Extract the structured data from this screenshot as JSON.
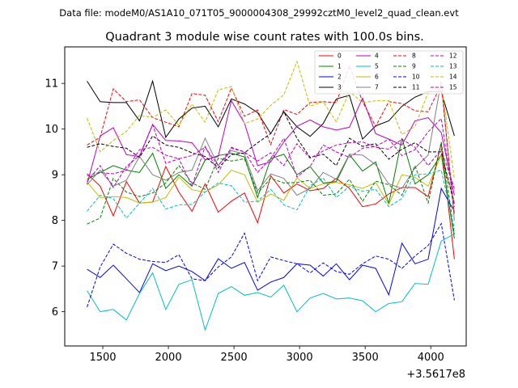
{
  "header_text": "Data file: modeM0/AS1A10_071T05_9000004308_29992cztM0_level2_quad_clean.evt",
  "chart_data": {
    "type": "line",
    "title": "Quadrant 3 module wise count rates with 100.0s bins.",
    "xlabel": "",
    "ylabel": "",
    "x_offset_label": "+3.5617e8",
    "xlim": [
      1210,
      4270
    ],
    "ylim": [
      5.25,
      11.8
    ],
    "x_ticks": [
      1500,
      2000,
      2500,
      3000,
      3500,
      4000
    ],
    "y_ticks": [
      6,
      7,
      8,
      9,
      10,
      11
    ],
    "legend_position": "top-right",
    "x": [
      1380,
      1480,
      1580,
      1680,
      1780,
      1880,
      1980,
      2080,
      2180,
      2280,
      2380,
      2480,
      2580,
      2680,
      2780,
      2880,
      2980,
      3080,
      3180,
      3280,
      3380,
      3480,
      3580,
      3680,
      3780,
      3880,
      3980,
      4080,
      4180
    ],
    "series": [
      {
        "name": "0",
        "color": "#ff0000",
        "dash": "solid",
        "values": [
          9.02,
          8.75,
          8.1,
          8.85,
          8.38,
          8.4,
          9.18,
          8.62,
          8.2,
          8.8,
          8.18,
          8.42,
          8.6,
          7.95,
          8.98,
          8.6,
          8.8,
          8.65,
          8.7,
          8.92,
          8.7,
          8.3,
          8.36,
          8.58,
          8.72,
          8.72,
          8.52,
          9.68,
          7.15
        ]
      },
      {
        "name": "1",
        "color": "#008000",
        "dash": "solid",
        "values": [
          8.9,
          9.05,
          9.2,
          9.1,
          9.05,
          9.47,
          8.7,
          9.0,
          8.75,
          9.32,
          9.42,
          9.47,
          9.39,
          8.5,
          9.35,
          9.45,
          9.0,
          9.18,
          8.82,
          8.85,
          9.44,
          9.08,
          9.28,
          8.37,
          9.8,
          8.8,
          9.0,
          9.44,
          7.6
        ]
      },
      {
        "name": "2",
        "color": "#0000ff",
        "dash": "solid",
        "values": [
          6.93,
          6.75,
          7.02,
          6.72,
          6.42,
          7.05,
          6.9,
          7.0,
          6.88,
          6.68,
          7.16,
          6.95,
          7.08,
          6.47,
          6.65,
          6.75,
          7.05,
          7.02,
          6.78,
          7.05,
          6.7,
          7.02,
          6.95,
          6.37,
          7.5,
          7.05,
          7.15,
          8.7,
          8.2
        ]
      },
      {
        "name": "3",
        "color": "#000000",
        "dash": "solid",
        "values": [
          11.05,
          10.6,
          10.58,
          10.58,
          10.18,
          11.05,
          9.82,
          10.22,
          10.46,
          10.5,
          10.05,
          10.66,
          10.55,
          10.36,
          9.9,
          10.38,
          10.05,
          9.84,
          10.12,
          10.66,
          10.74,
          9.78,
          10.07,
          10.18,
          10.5,
          10.7,
          10.82,
          10.82,
          9.85
        ]
      },
      {
        "name": "4",
        "color": "#c000c0",
        "dash": "solid",
        "values": [
          8.8,
          9.85,
          10.03,
          9.44,
          9.4,
          10.1,
          9.75,
          9.74,
          9.7,
          9.33,
          9.4,
          10.62,
          10.13,
          9.2,
          9.28,
          9.72,
          10.06,
          10.2,
          10.05,
          9.98,
          10.04,
          10.68,
          9.9,
          9.78,
          9.65,
          10.18,
          10.25,
          9.92,
          8.55
        ]
      },
      {
        "name": "5",
        "color": "#00c0c0",
        "dash": "solid",
        "values": [
          6.46,
          6.0,
          6.05,
          5.82,
          6.4,
          6.85,
          6.05,
          6.6,
          6.7,
          5.6,
          6.4,
          6.55,
          6.36,
          6.42,
          6.32,
          6.58,
          6.0,
          6.3,
          6.4,
          6.28,
          6.3,
          6.24,
          6.0,
          6.18,
          6.22,
          6.62,
          6.6,
          7.55,
          7.7
        ]
      },
      {
        "name": "6",
        "color": "#bfbf00",
        "dash": "solid",
        "values": [
          8.84,
          8.5,
          8.52,
          8.5,
          8.38,
          8.4,
          8.5,
          8.95,
          8.67,
          8.62,
          8.78,
          9.1,
          9.0,
          8.4,
          8.58,
          8.44,
          8.93,
          8.7,
          8.8,
          8.83,
          8.78,
          8.7,
          8.83,
          8.35,
          9.0,
          8.94,
          8.75,
          9.44,
          8.4
        ]
      },
      {
        "name": "7",
        "color": "#808080",
        "dash": "solid",
        "values": [
          8.78,
          9.1,
          8.75,
          8.88,
          9.4,
          9.0,
          8.88,
          9.05,
          9.1,
          9.8,
          9.2,
          9.53,
          9.45,
          8.65,
          9.02,
          8.92,
          8.55,
          8.7,
          9.05,
          8.9,
          9.45,
          9.43,
          9.22,
          8.8,
          8.7,
          9.15,
          9.43,
          11.05,
          8.0
        ]
      },
      {
        "name": "8",
        "color": "#ff0000",
        "dash": "dashed",
        "values": [
          9.65,
          9.82,
          10.88,
          10.6,
          10.64,
          10.25,
          10.15,
          10.05,
          10.78,
          10.74,
          10.16,
          10.9,
          10.28,
          10.42,
          9.66,
          10.43,
          10.32,
          10.58,
          10.6,
          10.58,
          11.38,
          10.6,
          10.06,
          10.6,
          10.56,
          10.4,
          10.38,
          10.98,
          8.12
        ]
      },
      {
        "name": "9",
        "color": "#008000",
        "dash": "dashed",
        "values": [
          7.92,
          8.05,
          8.92,
          8.62,
          8.52,
          8.6,
          8.82,
          9.2,
          8.82,
          8.68,
          9.36,
          9.3,
          9.35,
          8.6,
          8.92,
          8.82,
          8.83,
          8.88,
          8.55,
          8.58,
          8.9,
          8.42,
          8.86,
          8.78,
          8.55,
          9.2,
          8.38,
          9.72,
          7.7
        ]
      },
      {
        "name": "10",
        "color": "#0000ff",
        "dash": "dashed",
        "values": [
          6.1,
          6.98,
          7.48,
          7.28,
          7.15,
          7.1,
          7.08,
          7.25,
          6.72,
          6.68,
          6.98,
          7.2,
          7.72,
          6.68,
          7.2,
          7.12,
          7.05,
          6.85,
          7.07,
          6.88,
          6.82,
          7.05,
          7.22,
          7.15,
          6.95,
          7.22,
          7.45,
          7.93,
          6.25
        ]
      },
      {
        "name": "11",
        "color": "#000000",
        "dash": "dashed",
        "values": [
          9.6,
          9.68,
          9.62,
          9.58,
          9.38,
          9.85,
          9.65,
          9.6,
          9.48,
          9.4,
          9.15,
          9.44,
          9.48,
          9.7,
          9.9,
          10.38,
          9.8,
          9.38,
          9.45,
          9.2,
          9.8,
          9.62,
          9.68,
          9.34,
          9.56,
          9.7,
          9.5,
          9.5,
          8.35
        ]
      },
      {
        "name": "12",
        "color": "#c000c0",
        "dash": "dashed",
        "values": [
          8.85,
          9.2,
          8.72,
          9.18,
          9.42,
          10.1,
          9.25,
          9.35,
          8.75,
          9.62,
          9.05,
          9.6,
          9.5,
          9.05,
          9.36,
          9.8,
          8.95,
          9.18,
          9.65,
          9.5,
          9.38,
          9.58,
          9.62,
          9.78,
          9.42,
          9.55,
          9.94,
          10.23,
          8.3
        ]
      },
      {
        "name": "13",
        "color": "#00c0c0",
        "dash": "dashed",
        "values": [
          8.2,
          8.55,
          8.48,
          8.05,
          8.38,
          8.7,
          8.25,
          8.34,
          8.35,
          8.62,
          8.82,
          8.76,
          8.4,
          8.42,
          8.68,
          8.34,
          8.23,
          8.76,
          8.93,
          8.5,
          8.75,
          8.64,
          8.68,
          8.3,
          8.48,
          9.0,
          9.02,
          9.1,
          7.82
        ]
      },
      {
        "name": "14",
        "color": "#bfbf00",
        "dash": "dashed",
        "values": [
          10.24,
          9.5,
          9.75,
          9.95,
          10.3,
          10.25,
          10.42,
          10.08,
          10.55,
          10.15,
          10.86,
          10.93,
          10.12,
          10.22,
          10.52,
          10.75,
          11.48,
          10.5,
          10.6,
          10.16,
          10.82,
          10.58,
          10.62,
          10.62,
          9.88,
          10.06,
          10.8,
          11.02,
          8.9
        ]
      },
      {
        "name": "15",
        "color": "#c000c0",
        "dash": "dashed",
        "values": [
          8.98,
          9.05,
          9.02,
          9.1,
          9.55,
          9.6,
          9.43,
          9.35,
          9.42,
          9.6,
          9.2,
          9.58,
          9.5,
          9.3,
          9.48,
          9.2,
          9.68,
          9.36,
          9.52,
          9.65,
          9.7,
          9.72,
          9.6,
          9.56,
          9.78,
          9.6,
          9.2,
          9.55,
          8.7
        ]
      }
    ]
  }
}
